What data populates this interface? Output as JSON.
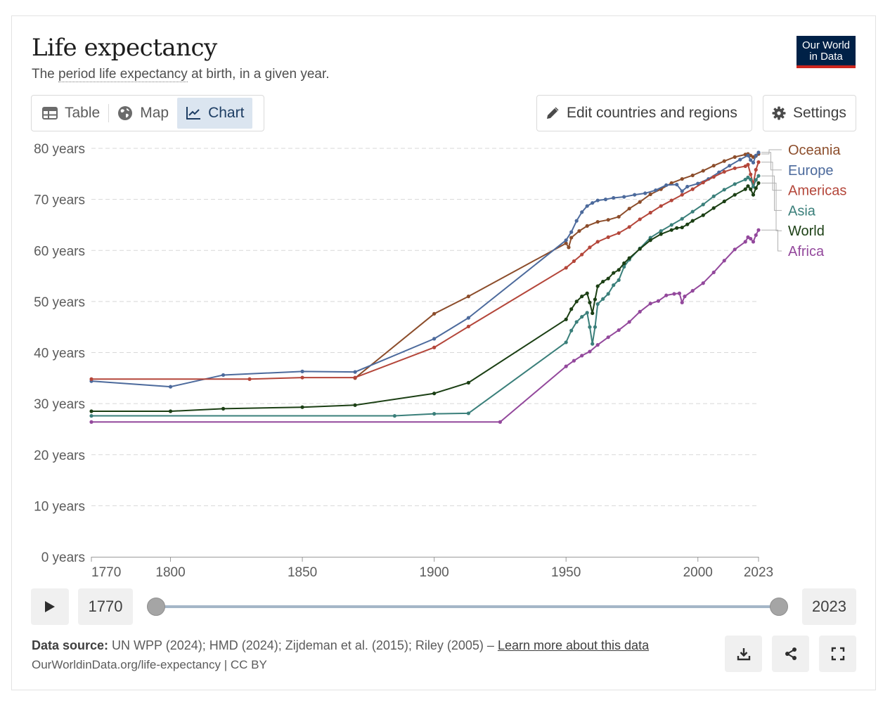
{
  "header": {
    "title": "Life expectancy",
    "subtitle_pre": "The ",
    "subtitle_link": "period life expectancy",
    "subtitle_post": " at birth, in a given year.",
    "logo_line1": "Our World",
    "logo_line2": "in Data"
  },
  "tabs": [
    {
      "label": "Table",
      "icon": "table-icon"
    },
    {
      "label": "Map",
      "icon": "globe-icon"
    },
    {
      "label": "Chart",
      "icon": "line-chart-icon",
      "active": true
    }
  ],
  "buttons": {
    "edit": "Edit countries and regions",
    "settings": "Settings"
  },
  "timeline": {
    "start": "1770",
    "end": "2023"
  },
  "footer": {
    "source_label": "Data source:",
    "source_text": " UN WPP (2024); HMD (2024); Zijdeman et al. (2015); Riley (2005) – ",
    "learn_more": "Learn more about this data",
    "url": "OurWorldinData.org/life-expectancy | CC BY"
  },
  "colors": {
    "Oceania": "#8c4d2b",
    "Europe": "#4c6a9c",
    "Americas": "#b4463a",
    "Asia": "#3a7f7a",
    "World": "#1b3f14",
    "Africa": "#93489c"
  },
  "chart_data": {
    "type": "line",
    "title": "Life expectancy",
    "xlabel": "",
    "ylabel": "",
    "xlim": [
      1770,
      2023
    ],
    "ylim": [
      0,
      80
    ],
    "y_ticks": [
      0,
      10,
      20,
      30,
      40,
      50,
      60,
      70,
      80
    ],
    "y_tick_labels": [
      "0 years",
      "10 years",
      "20 years",
      "30 years",
      "40 years",
      "50 years",
      "60 years",
      "70 years",
      "80 years"
    ],
    "x_ticks": [
      1770,
      1800,
      1850,
      1900,
      1950,
      2000,
      2023
    ],
    "x_tick_labels": [
      "1770",
      "1800",
      "1850",
      "1900",
      "1950",
      "2000",
      "2023"
    ],
    "legend_order": [
      "Oceania",
      "Europe",
      "Americas",
      "Asia",
      "World",
      "Africa"
    ],
    "series": [
      {
        "name": "Oceania",
        "points": [
          [
            1870,
            35.0
          ],
          [
            1900,
            47.6
          ],
          [
            1913,
            51.0
          ],
          [
            1950,
            61.4
          ],
          [
            1951,
            60.6
          ],
          [
            1952,
            62.5
          ],
          [
            1955,
            63.8
          ],
          [
            1958,
            64.8
          ],
          [
            1962,
            65.6
          ],
          [
            1966,
            66.0
          ],
          [
            1970,
            66.6
          ],
          [
            1974,
            68.2
          ],
          [
            1978,
            69.5
          ],
          [
            1982,
            71.0
          ],
          [
            1986,
            72.0
          ],
          [
            1990,
            73.2
          ],
          [
            1994,
            74.0
          ],
          [
            1998,
            74.7
          ],
          [
            2002,
            75.6
          ],
          [
            2006,
            76.6
          ],
          [
            2010,
            77.5
          ],
          [
            2014,
            78.3
          ],
          [
            2018,
            78.8
          ],
          [
            2019,
            78.9
          ],
          [
            2020,
            78.6
          ],
          [
            2021,
            78.3
          ],
          [
            2022,
            78.5
          ],
          [
            2023,
            78.9
          ]
        ]
      },
      {
        "name": "Europe",
        "points": [
          [
            1770,
            34.4
          ],
          [
            1800,
            33.3
          ],
          [
            1820,
            35.6
          ],
          [
            1850,
            36.3
          ],
          [
            1870,
            36.2
          ],
          [
            1900,
            42.7
          ],
          [
            1913,
            46.8
          ],
          [
            1950,
            62.0
          ],
          [
            1952,
            63.6
          ],
          [
            1954,
            65.8
          ],
          [
            1956,
            67.5
          ],
          [
            1958,
            68.7
          ],
          [
            1960,
            69.3
          ],
          [
            1962,
            69.8
          ],
          [
            1965,
            70.0
          ],
          [
            1968,
            70.3
          ],
          [
            1972,
            70.5
          ],
          [
            1976,
            70.9
          ],
          [
            1980,
            71.2
          ],
          [
            1984,
            71.8
          ],
          [
            1988,
            72.8
          ],
          [
            1992,
            72.9
          ],
          [
            1994,
            71.6
          ],
          [
            1996,
            72.5
          ],
          [
            2000,
            73.1
          ],
          [
            2004,
            74.0
          ],
          [
            2008,
            75.3
          ],
          [
            2012,
            76.6
          ],
          [
            2016,
            77.8
          ],
          [
            2019,
            78.6
          ],
          [
            2020,
            77.7
          ],
          [
            2021,
            77.2
          ],
          [
            2022,
            78.6
          ],
          [
            2023,
            79.2
          ]
        ]
      },
      {
        "name": "Americas",
        "points": [
          [
            1770,
            34.8
          ],
          [
            1830,
            34.8
          ],
          [
            1850,
            35.1
          ],
          [
            1870,
            35.1
          ],
          [
            1900,
            41.0
          ],
          [
            1913,
            45.1
          ],
          [
            1950,
            56.6
          ],
          [
            1953,
            57.9
          ],
          [
            1956,
            59.2
          ],
          [
            1959,
            60.6
          ],
          [
            1962,
            61.7
          ],
          [
            1966,
            62.6
          ],
          [
            1970,
            63.4
          ],
          [
            1974,
            64.6
          ],
          [
            1978,
            66.1
          ],
          [
            1982,
            67.4
          ],
          [
            1986,
            68.7
          ],
          [
            1990,
            69.8
          ],
          [
            1994,
            70.9
          ],
          [
            1998,
            72.0
          ],
          [
            2002,
            73.3
          ],
          [
            2006,
            74.4
          ],
          [
            2010,
            75.4
          ],
          [
            2014,
            76.1
          ],
          [
            2018,
            76.5
          ],
          [
            2019,
            76.8
          ],
          [
            2020,
            74.9
          ],
          [
            2021,
            73.0
          ],
          [
            2022,
            75.8
          ],
          [
            2023,
            77.3
          ]
        ]
      },
      {
        "name": "Asia",
        "points": [
          [
            1770,
            27.6
          ],
          [
            1885,
            27.6
          ],
          [
            1900,
            28.0
          ],
          [
            1913,
            28.1
          ],
          [
            1950,
            42.0
          ],
          [
            1952,
            44.3
          ],
          [
            1954,
            46.0
          ],
          [
            1956,
            47.0
          ],
          [
            1958,
            47.8
          ],
          [
            1959,
            45.0
          ],
          [
            1960,
            41.7
          ],
          [
            1961,
            45.0
          ],
          [
            1962,
            49.5
          ],
          [
            1964,
            50.5
          ],
          [
            1966,
            51.5
          ],
          [
            1968,
            53.2
          ],
          [
            1970,
            54.2
          ],
          [
            1972,
            56.8
          ],
          [
            1974,
            58.2
          ],
          [
            1978,
            60.4
          ],
          [
            1982,
            62.5
          ],
          [
            1986,
            63.8
          ],
          [
            1990,
            65.0
          ],
          [
            1994,
            66.2
          ],
          [
            1998,
            67.6
          ],
          [
            2002,
            69.0
          ],
          [
            2006,
            70.6
          ],
          [
            2010,
            71.9
          ],
          [
            2014,
            73.0
          ],
          [
            2018,
            73.9
          ],
          [
            2019,
            74.3
          ],
          [
            2020,
            73.9
          ],
          [
            2021,
            72.5
          ],
          [
            2022,
            73.8
          ],
          [
            2023,
            74.6
          ]
        ]
      },
      {
        "name": "World",
        "points": [
          [
            1770,
            28.5
          ],
          [
            1800,
            28.5
          ],
          [
            1820,
            29.0
          ],
          [
            1850,
            29.3
          ],
          [
            1870,
            29.7
          ],
          [
            1900,
            32.0
          ],
          [
            1913,
            34.1
          ],
          [
            1950,
            46.5
          ],
          [
            1952,
            48.5
          ],
          [
            1954,
            50.0
          ],
          [
            1956,
            51.0
          ],
          [
            1958,
            51.6
          ],
          [
            1959,
            49.8
          ],
          [
            1960,
            47.7
          ],
          [
            1961,
            50.4
          ],
          [
            1962,
            53.0
          ],
          [
            1964,
            53.9
          ],
          [
            1966,
            54.5
          ],
          [
            1968,
            55.6
          ],
          [
            1970,
            56.2
          ],
          [
            1972,
            57.5
          ],
          [
            1974,
            58.5
          ],
          [
            1978,
            60.3
          ],
          [
            1982,
            62.0
          ],
          [
            1986,
            63.2
          ],
          [
            1990,
            64.0
          ],
          [
            1992,
            64.4
          ],
          [
            1994,
            64.5
          ],
          [
            1996,
            65.1
          ],
          [
            1998,
            65.8
          ],
          [
            2002,
            66.9
          ],
          [
            2006,
            68.3
          ],
          [
            2010,
            69.6
          ],
          [
            2014,
            70.9
          ],
          [
            2018,
            72.0
          ],
          [
            2019,
            72.6
          ],
          [
            2020,
            72.0
          ],
          [
            2021,
            70.9
          ],
          [
            2022,
            72.2
          ],
          [
            2023,
            73.2
          ]
        ]
      },
      {
        "name": "Africa",
        "points": [
          [
            1770,
            26.4
          ],
          [
            1925,
            26.4
          ],
          [
            1950,
            37.3
          ],
          [
            1953,
            38.4
          ],
          [
            1956,
            39.4
          ],
          [
            1959,
            40.2
          ],
          [
            1962,
            41.5
          ],
          [
            1966,
            43.0
          ],
          [
            1970,
            44.4
          ],
          [
            1974,
            46.0
          ],
          [
            1978,
            48.0
          ],
          [
            1982,
            49.6
          ],
          [
            1985,
            50.1
          ],
          [
            1988,
            51.2
          ],
          [
            1991,
            51.5
          ],
          [
            1993,
            51.6
          ],
          [
            1994,
            49.8
          ],
          [
            1995,
            51.0
          ],
          [
            1998,
            52.1
          ],
          [
            2002,
            53.6
          ],
          [
            2006,
            55.7
          ],
          [
            2010,
            58.0
          ],
          [
            2014,
            60.2
          ],
          [
            2018,
            61.7
          ],
          [
            2019,
            62.6
          ],
          [
            2020,
            62.3
          ],
          [
            2021,
            61.7
          ],
          [
            2022,
            63.0
          ],
          [
            2023,
            64.0
          ]
        ]
      }
    ]
  }
}
